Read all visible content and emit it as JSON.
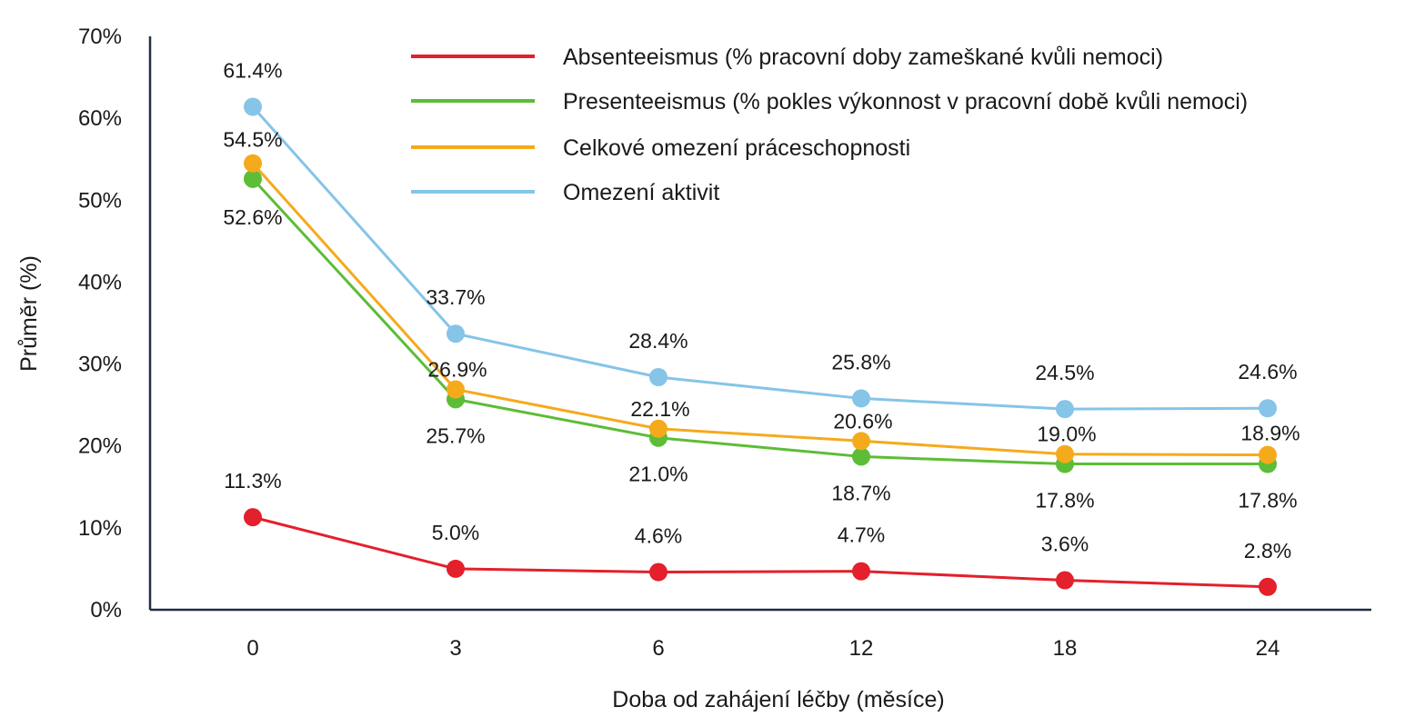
{
  "chart_data": {
    "type": "line",
    "title": "",
    "xlabel": "Doba od zahájení léčby (měsíce)",
    "ylabel": "Průměr (%)",
    "categories": [
      "0",
      "3",
      "6",
      "12",
      "18",
      "24"
    ],
    "ylim": [
      0,
      70
    ],
    "yticks": [
      "0%",
      "10%",
      "20%",
      "30%",
      "40%",
      "50%",
      "60%",
      "70%"
    ],
    "grid": false,
    "legend_position": "top-right",
    "series": [
      {
        "name": "Absenteeismus (% pracovní doby zameškané kvůli nemoci)",
        "color": "#e3202b",
        "values": [
          11.3,
          5.0,
          4.6,
          4.7,
          3.6,
          2.8
        ],
        "labels": [
          "11.3%",
          "5.0%",
          "4.6%",
          "4.7%",
          "3.6%",
          "2.8%"
        ]
      },
      {
        "name": "Presenteeismus (% pokles výkonnost v pracovní době kvůli nemoci)",
        "color": "#5cbd36",
        "values": [
          52.6,
          25.7,
          21.0,
          18.7,
          17.8,
          17.8
        ],
        "labels": [
          "52.6%",
          "25.7%",
          "21.0%",
          "18.7%",
          "17.8%",
          "17.8%"
        ]
      },
      {
        "name": "Celkové omezení práceschopnosti",
        "color": "#f5aa1c",
        "values": [
          54.5,
          26.9,
          22.1,
          20.6,
          19.0,
          18.9
        ],
        "labels": [
          "54.5%",
          "26.9%",
          "22.1%",
          "20.6%",
          "19.0%",
          "18.9%"
        ]
      },
      {
        "name": "Omezení aktivit",
        "color": "#86c4e8",
        "values": [
          61.4,
          33.7,
          28.4,
          25.8,
          24.5,
          24.6
        ],
        "labels": [
          "61.4%",
          "33.7%",
          "28.4%",
          "25.8%",
          "24.5%",
          "24.6%"
        ]
      }
    ]
  }
}
